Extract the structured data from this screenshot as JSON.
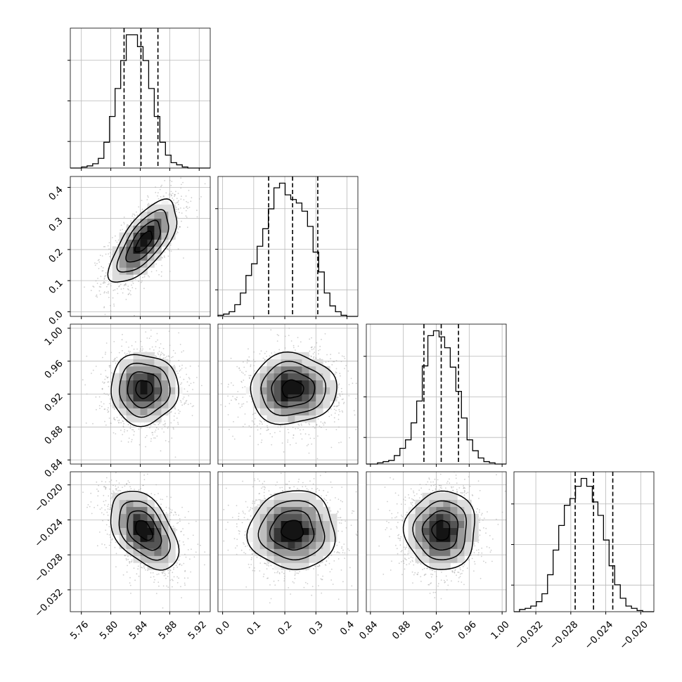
{
  "chart_data": {
    "type": "corner",
    "params": [
      {
        "range": [
          5.745,
          5.935
        ],
        "ticks": [
          5.76,
          5.8,
          5.84,
          5.88,
          5.92
        ],
        "tick_labels": [
          "5.76",
          "5.80",
          "5.84",
          "5.88",
          "5.92"
        ]
      },
      {
        "range": [
          -0.015,
          0.435
        ],
        "ticks": [
          0.0,
          0.1,
          0.2,
          0.3,
          0.4
        ],
        "tick_labels": [
          "0.0",
          "0.1",
          "0.2",
          "0.3",
          "0.4"
        ]
      },
      {
        "range": [
          0.835,
          1.005
        ],
        "ticks": [
          0.84,
          0.88,
          0.92,
          0.96,
          1.0
        ],
        "tick_labels": [
          "0.84",
          "0.88",
          "0.92",
          "0.96",
          "1.00"
        ]
      },
      {
        "range": [
          -0.0345,
          -0.0185
        ],
        "ticks": [
          -0.032,
          -0.028,
          -0.024,
          -0.02
        ],
        "tick_labels": [
          "−0.032",
          "−0.028",
          "−0.024",
          "−0.020"
        ]
      }
    ],
    "marginals": [
      {
        "quantiles": [
          5.818,
          5.841,
          5.864
        ],
        "counts": [
          0,
          0,
          1,
          2,
          4,
          9,
          24,
          48,
          74,
          100,
          124,
          124,
          113,
          100,
          74,
          48,
          24,
          12,
          5,
          3,
          1,
          0,
          0,
          0,
          0
        ]
      },
      {
        "quantiles": [
          0.148,
          0.225,
          0.306
        ],
        "counts": [
          1,
          2,
          4,
          10,
          20,
          35,
          45,
          60,
          75,
          92,
          110,
          114,
          104,
          100,
          97,
          90,
          77,
          55,
          38,
          20,
          9,
          4,
          1,
          0,
          0
        ]
      },
      {
        "quantiles": [
          0.905,
          0.926,
          0.947
        ],
        "counts": [
          0,
          0,
          1,
          2,
          3,
          7,
          13,
          20,
          34,
          52,
          81,
          106,
          110,
          105,
          96,
          80,
          60,
          38,
          20,
          11,
          5,
          2,
          1,
          0,
          0
        ]
      },
      {
        "quantiles": [
          -0.0275,
          -0.0254,
          -0.0232
        ],
        "counts": [
          0,
          2,
          3,
          5,
          9,
          16,
          33,
          55,
          77,
          95,
          101,
          112,
          119,
          112,
          98,
          86,
          64,
          41,
          24,
          12,
          5,
          3,
          1,
          0,
          0
        ]
      }
    ],
    "pairs": [
      {
        "x": 0,
        "y": 1,
        "center": [
          5.845,
          0.225
        ],
        "sd": [
          0.0225,
          0.065
        ],
        "rho": 0.68
      },
      {
        "x": 0,
        "y": 2,
        "center": [
          5.845,
          0.926
        ],
        "sd": [
          0.0225,
          0.021
        ],
        "rho": 0.0
      },
      {
        "x": 1,
        "y": 2,
        "center": [
          0.225,
          0.926
        ],
        "sd": [
          0.068,
          0.021
        ],
        "rho": 0.02
      },
      {
        "x": 0,
        "y": 3,
        "center": [
          5.845,
          -0.0252
        ],
        "sd": [
          0.0225,
          0.0022
        ],
        "rho": -0.45
      },
      {
        "x": 1,
        "y": 3,
        "center": [
          0.225,
          -0.0252
        ],
        "sd": [
          0.068,
          0.0022
        ],
        "rho": 0.0
      },
      {
        "x": 2,
        "y": 3,
        "center": [
          0.926,
          -0.0252
        ],
        "sd": [
          0.021,
          0.0022
        ],
        "rho": 0.02
      }
    ],
    "contour_levels_sigma": [
      0.5,
      1.0,
      1.5,
      2.0
    ],
    "grid": true,
    "title": "",
    "xlabel": "",
    "ylabel": ""
  }
}
